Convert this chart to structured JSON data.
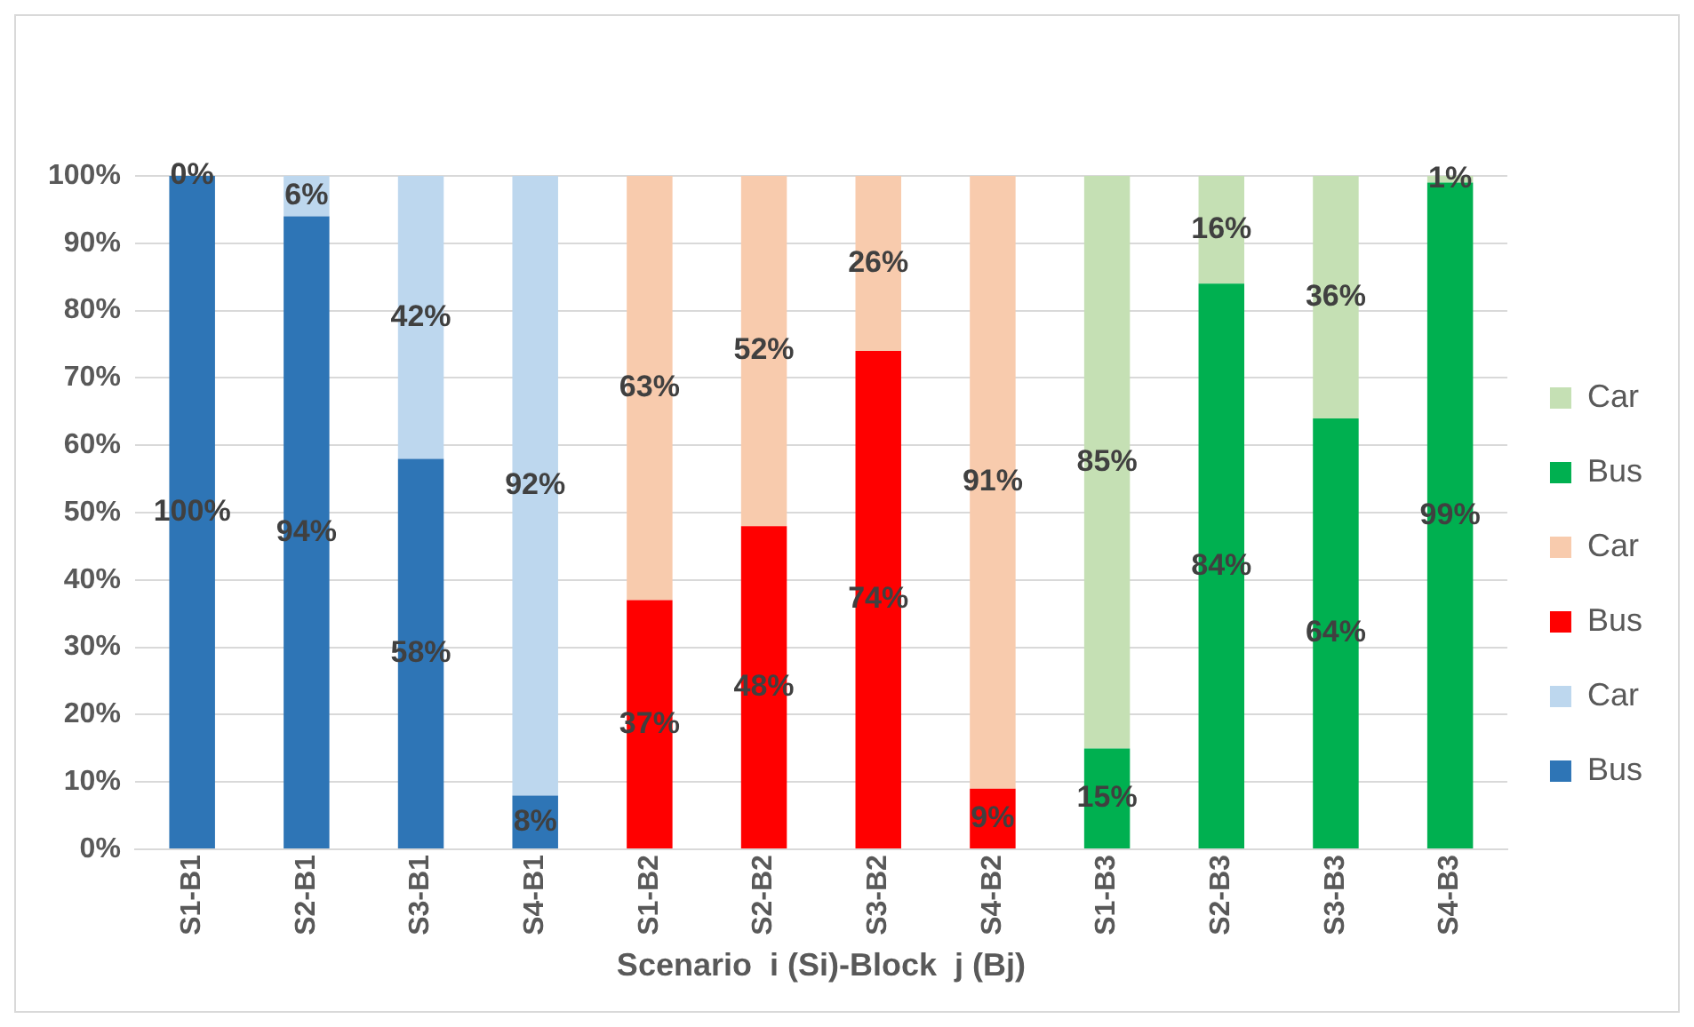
{
  "chart_data": {
    "type": "bar",
    "stacked": true,
    "xlabel": "Scenario  i (Si)-Block  j (Bj)",
    "categories": [
      "S1-B1",
      "S2-B1",
      "S3-B1",
      "S4-B1",
      "S1-B2",
      "S2-B2",
      "S3-B2",
      "S4-B2",
      "S1-B3",
      "S2-B3",
      "S3-B3",
      "S4-B3"
    ],
    "series": [
      {
        "name": "Bus",
        "color": "#2e75b6",
        "values": [
          100,
          94,
          58,
          8,
          null,
          null,
          null,
          null,
          null,
          null,
          null,
          null
        ],
        "value_labels": [
          "100%",
          "94%",
          "58%",
          "8%",
          null,
          null,
          null,
          null,
          null,
          null,
          null,
          null
        ]
      },
      {
        "name": "Car",
        "color": "#bdd7ee",
        "values": [
          0,
          6,
          42,
          92,
          null,
          null,
          null,
          null,
          null,
          null,
          null,
          null
        ],
        "value_labels": [
          "0%",
          "6%",
          "42%",
          "92%",
          null,
          null,
          null,
          null,
          null,
          null,
          null,
          null
        ]
      },
      {
        "name": "Bus",
        "color": "#ff0000",
        "values": [
          null,
          null,
          null,
          null,
          37,
          48,
          74,
          9,
          null,
          null,
          null,
          null
        ],
        "value_labels": [
          null,
          null,
          null,
          null,
          "37%",
          "48%",
          "74%",
          "9%",
          null,
          null,
          null,
          null
        ]
      },
      {
        "name": "Car",
        "color": "#f8cbad",
        "values": [
          null,
          null,
          null,
          null,
          63,
          52,
          26,
          91,
          null,
          null,
          null,
          null
        ],
        "value_labels": [
          null,
          null,
          null,
          null,
          "63%",
          "52%",
          "26%",
          "91%",
          null,
          null,
          null,
          null
        ]
      },
      {
        "name": "Bus",
        "color": "#00b050",
        "values": [
          null,
          null,
          null,
          null,
          null,
          null,
          null,
          null,
          15,
          84,
          64,
          99
        ],
        "value_labels": [
          null,
          null,
          null,
          null,
          null,
          null,
          null,
          null,
          "15%",
          "84%",
          "64%",
          "99%"
        ]
      },
      {
        "name": "Car",
        "color": "#c5e0b4",
        "values": [
          null,
          null,
          null,
          null,
          null,
          null,
          null,
          null,
          85,
          16,
          36,
          1
        ],
        "value_labels": [
          null,
          null,
          null,
          null,
          null,
          null,
          null,
          null,
          "85%",
          "16%",
          "36%",
          "1%"
        ]
      }
    ],
    "ylim": [
      0,
      100
    ],
    "yticks": [
      {
        "value": 0,
        "label": "0%"
      },
      {
        "value": 10,
        "label": "10%"
      },
      {
        "value": 20,
        "label": "20%"
      },
      {
        "value": 30,
        "label": "30%"
      },
      {
        "value": 40,
        "label": "40%"
      },
      {
        "value": 50,
        "label": "50%"
      },
      {
        "value": 60,
        "label": "60%"
      },
      {
        "value": 70,
        "label": "70%"
      },
      {
        "value": 80,
        "label": "80%"
      },
      {
        "value": 90,
        "label": "90%"
      },
      {
        "value": 100,
        "label": "100%"
      }
    ],
    "grid": "y",
    "legend": "right"
  }
}
